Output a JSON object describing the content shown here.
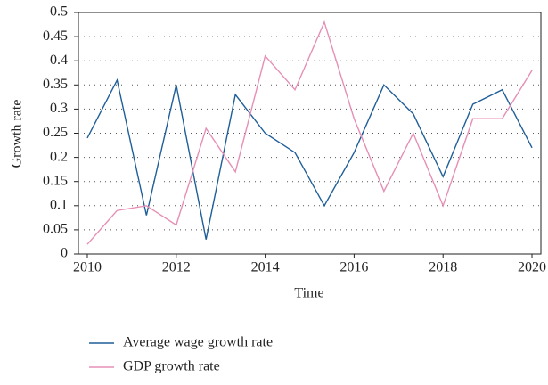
{
  "chart_data": {
    "type": "line",
    "xlabel": "Time",
    "ylabel": "Growth rate",
    "x": [
      2010,
      2010.67,
      2011.33,
      2012,
      2012.67,
      2013.33,
      2014,
      2014.67,
      2015.33,
      2016,
      2016.67,
      2017.33,
      2018,
      2018.67,
      2019.33,
      2020
    ],
    "series": [
      {
        "name": "Average wage growth rate",
        "color": "#1f5f99",
        "values": [
          0.24,
          0.36,
          0.08,
          0.35,
          0.03,
          0.33,
          0.25,
          0.21,
          0.1,
          0.21,
          0.35,
          0.29,
          0.16,
          0.31,
          0.34,
          0.22
        ]
      },
      {
        "name": "GDP growth rate",
        "color": "#e68fb5",
        "values": [
          0.02,
          0.09,
          0.1,
          0.06,
          0.26,
          0.17,
          0.41,
          0.34,
          0.48,
          0.28,
          0.13,
          0.25,
          0.1,
          0.28,
          0.28,
          0.38
        ]
      }
    ],
    "xlim": [
      2009.8,
      2020.2
    ],
    "xticks": [
      2010,
      2012,
      2014,
      2016,
      2018,
      2020
    ],
    "ylim": [
      0,
      0.5
    ],
    "yticks": [
      0,
      0.05,
      0.1,
      0.15,
      0.2,
      0.25,
      0.3,
      0.35,
      0.4,
      0.45,
      0.5
    ],
    "grid": true
  }
}
